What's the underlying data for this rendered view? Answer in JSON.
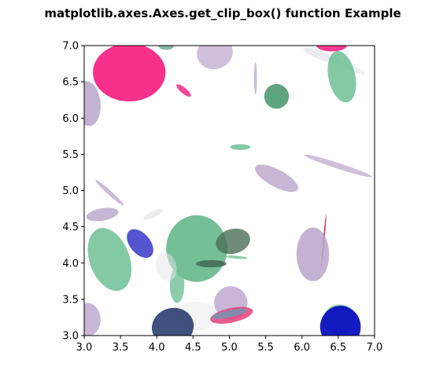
{
  "chart_data": {
    "type": "scatter",
    "title": "matplotlib.axes.Axes.get_clip_box() function Example",
    "xlabel": "",
    "ylabel": "",
    "xlim": [
      3.0,
      7.0
    ],
    "ylim": [
      3.0,
      7.0
    ],
    "x_ticks": [
      "3.0",
      "3.5",
      "4.0",
      "4.5",
      "5.0",
      "5.5",
      "6.0",
      "6.5",
      "7.0"
    ],
    "y_ticks": [
      "3.0",
      "3.5",
      "4.0",
      "4.5",
      "5.0",
      "5.5",
      "6.0",
      "6.5",
      "7.0"
    ],
    "grid": false,
    "ellipses": [
      {
        "cx": 3.62,
        "cy": 6.63,
        "w": 1.0,
        "h": 0.8,
        "angle": 0,
        "color": "#f72585",
        "opacity": 0.95
      },
      {
        "cx": 3.05,
        "cy": 6.2,
        "w": 0.35,
        "h": 0.62,
        "angle": 5,
        "color": "#b9a4c9",
        "opacity": 0.85
      },
      {
        "cx": 4.37,
        "cy": 6.38,
        "w": 0.08,
        "h": 0.25,
        "angle": 50,
        "color": "#f72585",
        "opacity": 0.85
      },
      {
        "cx": 4.13,
        "cy": 7.0,
        "w": 0.22,
        "h": 0.12,
        "angle": 0,
        "color": "#6aa88f",
        "opacity": 0.8
      },
      {
        "cx": 4.8,
        "cy": 6.9,
        "w": 0.5,
        "h": 0.45,
        "angle": 20,
        "color": "#c0a9cf",
        "opacity": 0.75
      },
      {
        "cx": 5.36,
        "cy": 6.55,
        "w": 0.04,
        "h": 0.45,
        "angle": 0,
        "color": "#c0a9cf",
        "opacity": 0.8
      },
      {
        "cx": 5.65,
        "cy": 6.3,
        "w": 0.34,
        "h": 0.34,
        "angle": 0,
        "color": "#4d9a72",
        "opacity": 0.9
      },
      {
        "cx": 6.41,
        "cy": 7.0,
        "w": 0.42,
        "h": 0.16,
        "angle": 0,
        "color": "#f72585",
        "opacity": 0.9
      },
      {
        "cx": 6.3,
        "cy": 6.85,
        "w": 0.6,
        "h": 0.12,
        "angle": -20,
        "color": "#e4e4e9",
        "opacity": 0.7
      },
      {
        "cx": 6.6,
        "cy": 6.73,
        "w": 0.6,
        "h": 0.08,
        "angle": -25,
        "color": "#e8e8ea",
        "opacity": 0.7
      },
      {
        "cx": 6.55,
        "cy": 6.57,
        "w": 0.37,
        "h": 0.72,
        "angle": 12,
        "color": "#6fbf96",
        "opacity": 0.85
      },
      {
        "cx": 5.15,
        "cy": 5.6,
        "w": 0.28,
        "h": 0.08,
        "angle": 0,
        "color": "#6fbf96",
        "opacity": 0.85
      },
      {
        "cx": 6.5,
        "cy": 5.34,
        "w": 0.98,
        "h": 0.08,
        "angle": -18,
        "color": "#c0a9cf",
        "opacity": 0.75
      },
      {
        "cx": 5.65,
        "cy": 5.17,
        "w": 0.66,
        "h": 0.24,
        "angle": -28,
        "color": "#b9a4c9",
        "opacity": 0.8
      },
      {
        "cx": 3.35,
        "cy": 4.97,
        "w": 0.52,
        "h": 0.06,
        "angle": -42,
        "color": "#b9a4c9",
        "opacity": 0.75
      },
      {
        "cx": 3.25,
        "cy": 4.67,
        "w": 0.45,
        "h": 0.17,
        "angle": 10,
        "color": "#b9a4c9",
        "opacity": 0.8
      },
      {
        "cx": 3.95,
        "cy": 4.67,
        "w": 0.3,
        "h": 0.09,
        "angle": 25,
        "color": "#e6e6ea",
        "opacity": 0.75
      },
      {
        "cx": 6.3,
        "cy": 4.3,
        "w": 0.02,
        "h": 0.75,
        "angle": -5,
        "color": "#c2185b",
        "opacity": 0.9
      },
      {
        "cx": 3.35,
        "cy": 4.05,
        "w": 0.55,
        "h": 0.9,
        "angle": 20,
        "color": "#6fbf96",
        "opacity": 0.85
      },
      {
        "cx": 3.77,
        "cy": 4.27,
        "w": 0.28,
        "h": 0.46,
        "angle": 40,
        "color": "#1c1cbf",
        "opacity": 0.75
      },
      {
        "cx": 4.55,
        "cy": 4.2,
        "w": 0.84,
        "h": 0.92,
        "angle": 0,
        "color": "#5db485",
        "opacity": 0.85
      },
      {
        "cx": 4.28,
        "cy": 3.7,
        "w": 0.2,
        "h": 0.5,
        "angle": 0,
        "color": "#6fbf96",
        "opacity": 0.8
      },
      {
        "cx": 4.13,
        "cy": 3.95,
        "w": 0.28,
        "h": 0.4,
        "angle": 15,
        "color": "#e6e6ea",
        "opacity": 0.5
      },
      {
        "cx": 5.05,
        "cy": 4.3,
        "w": 0.48,
        "h": 0.34,
        "angle": 15,
        "color": "#4a6e55",
        "opacity": 0.8
      },
      {
        "cx": 4.75,
        "cy": 3.99,
        "w": 0.42,
        "h": 0.1,
        "angle": 0,
        "color": "#3f6650",
        "opacity": 0.85
      },
      {
        "cx": 5.1,
        "cy": 4.08,
        "w": 0.3,
        "h": 0.04,
        "angle": -5,
        "color": "#6fbf96",
        "opacity": 0.8
      },
      {
        "cx": 6.15,
        "cy": 4.12,
        "w": 0.45,
        "h": 0.74,
        "angle": 0,
        "color": "#b9a4c9",
        "opacity": 0.85
      },
      {
        "cx": 3.05,
        "cy": 3.22,
        "w": 0.35,
        "h": 0.46,
        "angle": 0,
        "color": "#c0a9cf",
        "opacity": 0.85
      },
      {
        "cx": 5.02,
        "cy": 3.45,
        "w": 0.46,
        "h": 0.46,
        "angle": 0,
        "color": "#c0a9cf",
        "opacity": 0.85
      },
      {
        "cx": 4.55,
        "cy": 3.27,
        "w": 0.6,
        "h": 0.4,
        "angle": 0,
        "color": "#ececef",
        "opacity": 0.6
      },
      {
        "cx": 5.03,
        "cy": 3.28,
        "w": 0.6,
        "h": 0.2,
        "angle": 12,
        "color": "#e4407a",
        "opacity": 0.85
      },
      {
        "cx": 5.0,
        "cy": 3.3,
        "w": 0.5,
        "h": 0.1,
        "angle": 12,
        "color": "#49b0c4",
        "opacity": 0.6
      },
      {
        "cx": 4.22,
        "cy": 3.12,
        "w": 0.58,
        "h": 0.52,
        "angle": 15,
        "color": "#1e3266",
        "opacity": 0.85
      },
      {
        "cx": 6.52,
        "cy": 3.22,
        "w": 0.45,
        "h": 0.42,
        "angle": 0,
        "color": "#6fbf96",
        "opacity": 0.8
      },
      {
        "cx": 6.53,
        "cy": 3.12,
        "w": 0.56,
        "h": 0.58,
        "angle": 0,
        "color": "#0a10c0",
        "opacity": 0.95
      }
    ]
  }
}
